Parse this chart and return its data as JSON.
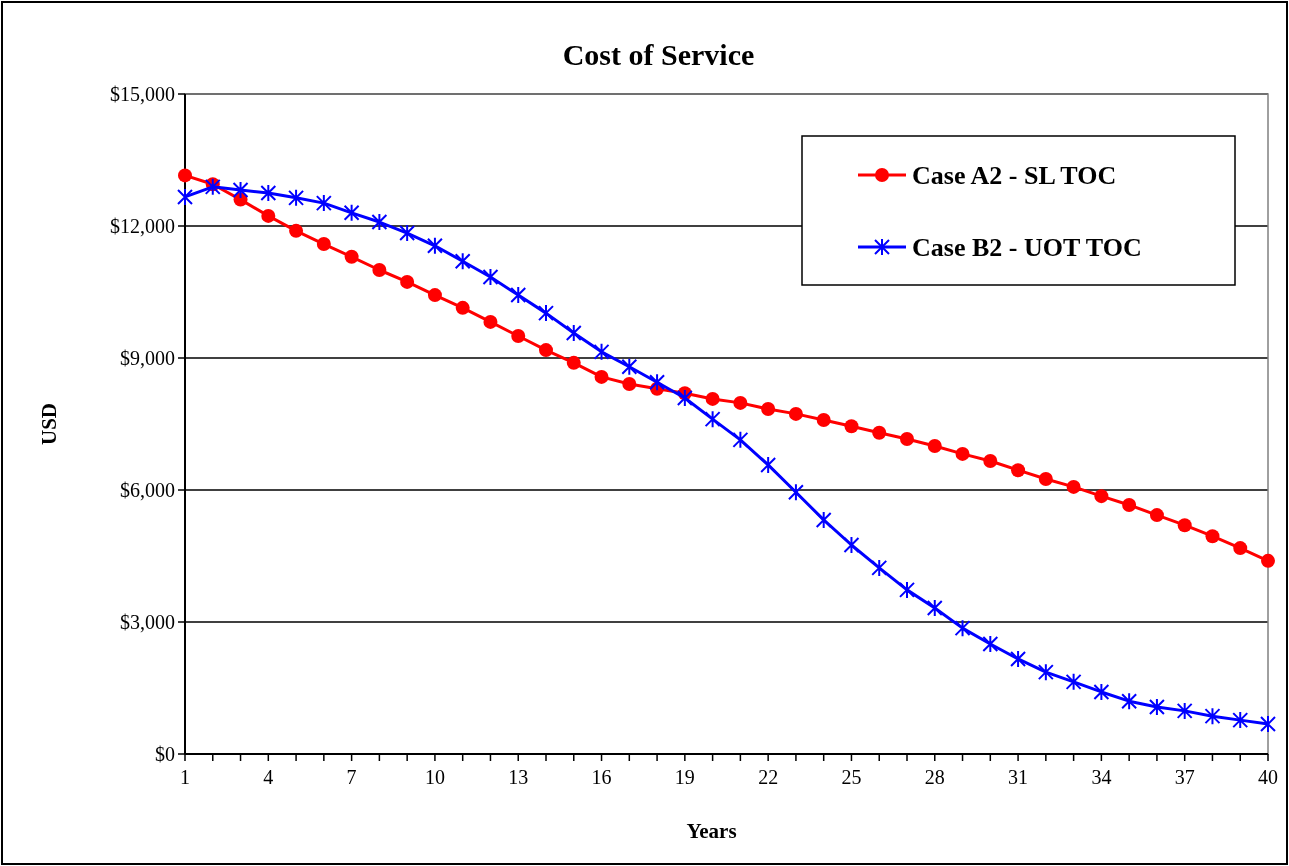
{
  "chart_data": {
    "type": "line",
    "title": "Cost of Service",
    "xlabel": "Years",
    "ylabel": "USD",
    "x": [
      1,
      2,
      3,
      4,
      5,
      6,
      7,
      8,
      9,
      10,
      11,
      12,
      13,
      14,
      15,
      16,
      17,
      18,
      19,
      20,
      21,
      22,
      23,
      24,
      25,
      26,
      27,
      28,
      29,
      30,
      31,
      32,
      33,
      34,
      35,
      36,
      37,
      38,
      39,
      40
    ],
    "series": [
      {
        "name": "Case A2 - SL TOC",
        "color": "#ff0000",
        "marker": "circle",
        "values": [
          13150,
          12950,
          12600,
          12230,
          11890,
          11590,
          11300,
          11000,
          10730,
          10430,
          10140,
          9820,
          9500,
          9180,
          8890,
          8570,
          8410,
          8300,
          8200,
          8070,
          7980,
          7840,
          7730,
          7590,
          7450,
          7300,
          7160,
          7000,
          6820,
          6660,
          6450,
          6250,
          6070,
          5860,
          5660,
          5430,
          5200,
          4950,
          4680,
          4390
        ]
      },
      {
        "name": "Case B2 - UOT TOC",
        "color": "#0000ff",
        "marker": "cross",
        "values": [
          12660,
          12890,
          12820,
          12750,
          12640,
          12520,
          12300,
          12090,
          11840,
          11550,
          11200,
          10840,
          10430,
          10020,
          9570,
          9140,
          8800,
          8450,
          8090,
          7610,
          7140,
          6570,
          5950,
          5320,
          4750,
          4230,
          3730,
          3320,
          2860,
          2500,
          2160,
          1860,
          1640,
          1410,
          1200,
          1070,
          980,
          860,
          770,
          680
        ]
      }
    ],
    "xlim": [
      1,
      40
    ],
    "xticks": [
      1,
      {
        "value": 2,
        "label": null
      },
      {
        "value": 3,
        "label": null
      },
      4,
      {
        "value": 5,
        "label": null
      },
      {
        "value": 6,
        "label": null
      },
      7,
      {
        "value": 8,
        "label": null
      },
      {
        "value": 9,
        "label": null
      },
      10,
      {
        "value": 11,
        "label": null
      },
      {
        "value": 12,
        "label": null
      },
      13,
      {
        "value": 14,
        "label": null
      },
      {
        "value": 15,
        "label": null
      },
      16,
      {
        "value": 17,
        "label": null
      },
      {
        "value": 18,
        "label": null
      },
      19,
      {
        "value": 20,
        "label": null
      },
      {
        "value": 21,
        "label": null
      },
      22,
      {
        "value": 23,
        "label": null
      },
      {
        "value": 24,
        "label": null
      },
      25,
      {
        "value": 26,
        "label": null
      },
      {
        "value": 27,
        "label": null
      },
      28,
      {
        "value": 29,
        "label": null
      },
      {
        "value": 30,
        "label": null
      },
      31,
      {
        "value": 32,
        "label": null
      },
      {
        "value": 33,
        "label": null
      },
      34,
      {
        "value": 35,
        "label": null
      },
      {
        "value": 36,
        "label": null
      },
      37,
      {
        "value": 38,
        "label": null
      },
      {
        "value": 39,
        "label": null
      },
      40
    ],
    "ylim": [
      0,
      15000
    ],
    "yticks": [
      {
        "value": 0,
        "label": "$0"
      },
      {
        "value": 3000,
        "label": "$3,000"
      },
      {
        "value": 6000,
        "label": "$6,000"
      },
      {
        "value": 9000,
        "label": "$9,000"
      },
      {
        "value": 12000,
        "label": "$12,000"
      },
      {
        "value": 15000,
        "label": "$15,000"
      }
    ],
    "grid": "y",
    "legend": "top right",
    "line_style": "solid"
  }
}
